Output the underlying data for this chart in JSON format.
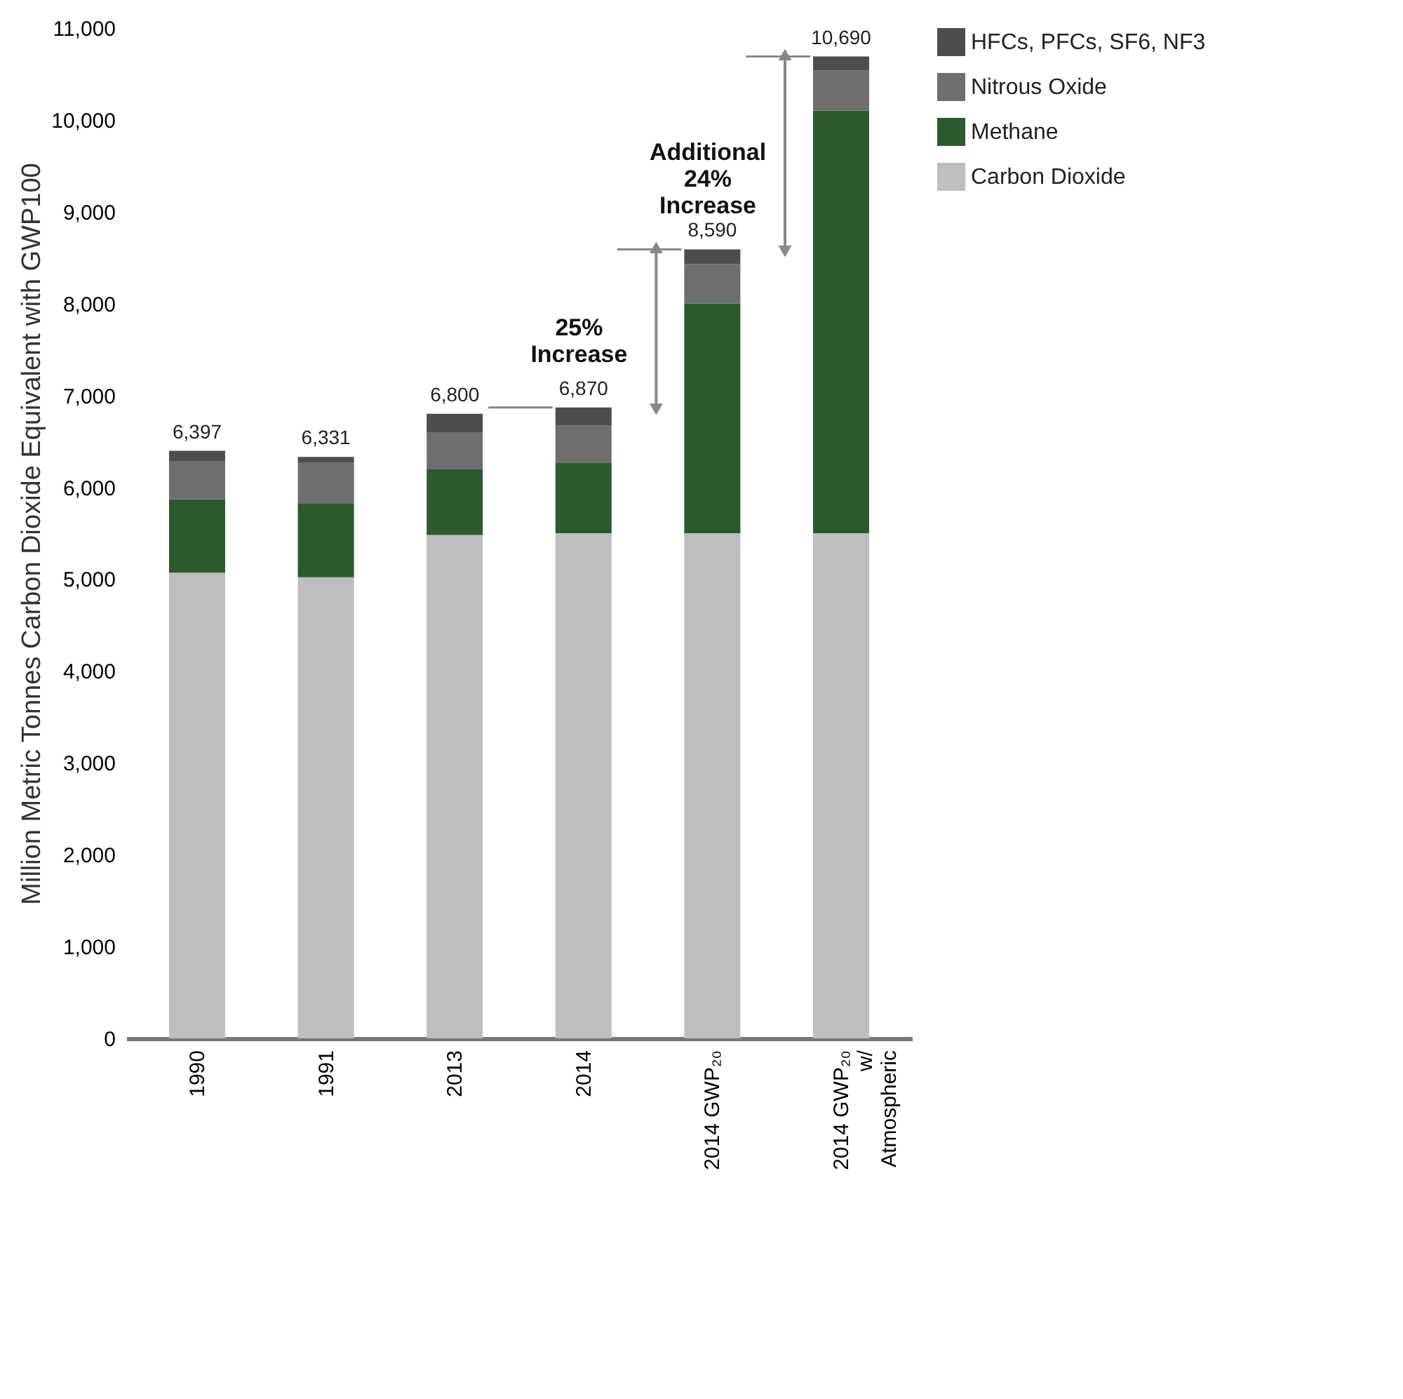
{
  "chart_data": {
    "type": "bar",
    "stacked": true,
    "ylabel": "Million Metric Tonnes Carbon Dioxide Equivalent with GWP100",
    "categories": [
      "1990",
      "1991",
      "2013",
      "2014",
      "2014 GWP₂₀",
      "2014 GWP₂₀ w/ Atmospheric"
    ],
    "series": [
      {
        "name": "Carbon Dioxide",
        "color": "#bcbec0",
        "values": [
          5070,
          5020,
          5480,
          5500,
          5500,
          5500
        ]
      },
      {
        "name": "Methane",
        "color": "#2b5a2f",
        "values": [
          800,
          800,
          720,
          770,
          2500,
          4600
        ]
      },
      {
        "name": "Nitrous Oxide",
        "color": "#6d6e70",
        "values": [
          417,
          451,
          400,
          400,
          430,
          440
        ]
      },
      {
        "name": "HFCs, PFCs, SF6, NF3",
        "color": "#4d4d4f",
        "values": [
          110,
          60,
          200,
          200,
          160,
          150
        ]
      }
    ],
    "totals": [
      "6,397",
      "6,331",
      "6,800",
      "6,870",
      "8,590",
      "10,690"
    ],
    "annotations": [
      "25% Increase",
      "Additional 24% Increase"
    ],
    "ref_lines": [
      {
        "axis": "y",
        "value": 6870,
        "color": "#888888"
      },
      {
        "axis": "y",
        "value": 8590,
        "color": "#888888"
      },
      {
        "axis": "y",
        "value": 10690,
        "color": "#888888"
      }
    ],
    "ylim": [
      0,
      11000
    ],
    "yticks": [
      0,
      {
        "value": 1000,
        "label": "1,000"
      },
      {
        "value": 2000,
        "label": "2,000"
      },
      {
        "value": 3000,
        "label": "3,000"
      },
      {
        "value": 4000,
        "label": "4,000"
      },
      {
        "value": 5000,
        "label": "5,000"
      },
      {
        "value": 6000,
        "label": "6,000"
      },
      {
        "value": 7000,
        "label": "7,000"
      },
      {
        "value": 8000,
        "label": "8,000"
      },
      {
        "value": 9000,
        "label": "9,000"
      },
      {
        "value": 10000,
        "label": "10,000"
      },
      {
        "value": 11000,
        "label": "11,000"
      }
    ],
    "grid": false,
    "legend": "right"
  }
}
